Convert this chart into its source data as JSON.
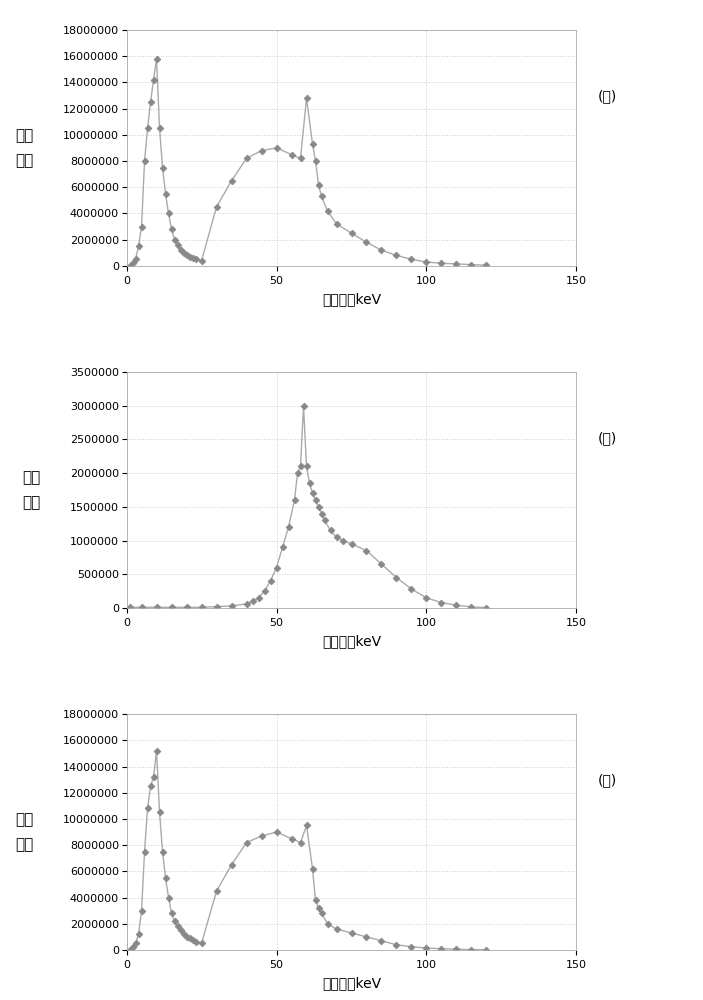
{
  "chart_A": {
    "x": [
      1,
      2,
      3,
      4,
      5,
      6,
      7,
      8,
      9,
      10,
      11,
      12,
      13,
      14,
      15,
      16,
      17,
      18,
      19,
      20,
      21,
      22,
      23,
      25,
      30,
      35,
      40,
      45,
      50,
      55,
      58,
      60,
      62,
      63,
      64,
      65,
      67,
      70,
      75,
      80,
      85,
      90,
      95,
      100,
      105,
      110,
      115,
      120
    ],
    "y": [
      0,
      200000,
      500000,
      1500000,
      3000000,
      8000000,
      10500000,
      12500000,
      14200000,
      15800000,
      10500000,
      7500000,
      5500000,
      4000000,
      2800000,
      2000000,
      1600000,
      1200000,
      1000000,
      800000,
      700000,
      600000,
      500000,
      400000,
      4500000,
      6500000,
      8200000,
      8800000,
      9000000,
      8500000,
      8200000,
      12800000,
      9300000,
      8000000,
      6200000,
      5300000,
      4200000,
      3200000,
      2500000,
      1800000,
      1200000,
      800000,
      500000,
      300000,
      200000,
      150000,
      100000,
      50000
    ],
    "ylim": [
      0,
      18000000
    ],
    "yticks": [
      0,
      2000000,
      4000000,
      6000000,
      8000000,
      10000000,
      12000000,
      14000000,
      16000000,
      18000000
    ],
    "ylabel": "光子\n数量",
    "xlabel": "光子能量keV",
    "label": "(Ａ)"
  },
  "chart_B": {
    "x": [
      1,
      5,
      10,
      15,
      20,
      25,
      30,
      35,
      40,
      42,
      44,
      46,
      48,
      50,
      52,
      54,
      56,
      57,
      58,
      59,
      60,
      61,
      62,
      63,
      64,
      65,
      66,
      68,
      70,
      72,
      75,
      80,
      85,
      90,
      95,
      100,
      105,
      110,
      115,
      120
    ],
    "y": [
      10000,
      10000,
      10000,
      10000,
      10000,
      10000,
      20000,
      30000,
      60000,
      100000,
      150000,
      250000,
      400000,
      600000,
      900000,
      1200000,
      1600000,
      2000000,
      2100000,
      3000000,
      2100000,
      1850000,
      1700000,
      1600000,
      1500000,
      1400000,
      1300000,
      1150000,
      1050000,
      1000000,
      950000,
      850000,
      650000,
      450000,
      280000,
      150000,
      80000,
      40000,
      15000,
      5000
    ],
    "ylim": [
      0,
      3500000
    ],
    "yticks": [
      0,
      500000,
      1000000,
      1500000,
      2000000,
      2500000,
      3000000,
      3500000
    ],
    "ylabel": "光子\n数量",
    "xlabel": "光子能量keV",
    "label": "(Ｂ)"
  },
  "chart_C": {
    "x": [
      1,
      2,
      3,
      4,
      5,
      6,
      7,
      8,
      9,
      10,
      11,
      12,
      13,
      14,
      15,
      16,
      17,
      18,
      19,
      20,
      21,
      22,
      23,
      25,
      30,
      35,
      40,
      45,
      50,
      55,
      58,
      60,
      62,
      63,
      64,
      65,
      67,
      70,
      75,
      80,
      85,
      90,
      95,
      100,
      105,
      110,
      115,
      120
    ],
    "y": [
      0,
      200000,
      500000,
      1200000,
      3000000,
      7500000,
      10800000,
      12500000,
      13200000,
      15200000,
      10500000,
      7500000,
      5500000,
      4000000,
      2800000,
      2200000,
      1800000,
      1500000,
      1200000,
      1000000,
      900000,
      750000,
      600000,
      500000,
      4500000,
      6500000,
      8200000,
      8700000,
      9000000,
      8500000,
      8200000,
      9500000,
      6200000,
      3800000,
      3200000,
      2800000,
      2000000,
      1600000,
      1300000,
      1000000,
      700000,
      400000,
      250000,
      150000,
      100000,
      60000,
      30000,
      10000
    ],
    "ylim": [
      0,
      18000000
    ],
    "yticks": [
      0,
      2000000,
      4000000,
      6000000,
      8000000,
      10000000,
      12000000,
      14000000,
      16000000,
      18000000
    ],
    "ylabel": "光子\n数量",
    "xlabel": "光子能量keV",
    "label": "(Ｃ)"
  },
  "xlim": [
    0,
    150
  ],
  "xticks": [
    0,
    50,
    100,
    150
  ],
  "line_color": "#aaaaaa",
  "marker": "D",
  "marker_size": 3.5,
  "marker_color": "#888888",
  "grid_color": "#cccccc",
  "grid_linestyle": ":",
  "background_color": "#ffffff",
  "fig_bg": "#ffffff",
  "label_fontsize": 10,
  "tick_fontsize": 8,
  "ylabel_fontsize": 11
}
